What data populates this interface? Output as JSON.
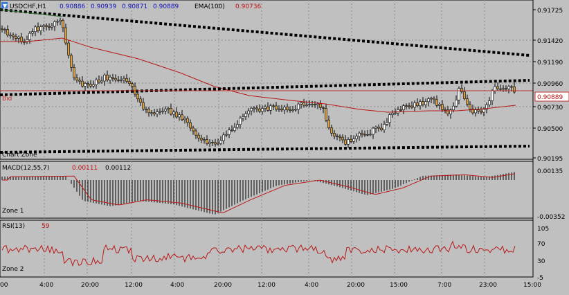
{
  "header": {
    "symbol": "USDCHF,H1",
    "open": "0.90886",
    "high": "0.90939",
    "low": "0.90871",
    "close": "0.90889",
    "ema_label": "EMA(100)",
    "ema_value": "0.90736"
  },
  "price_axis": {
    "ticks": [
      "0.91725",
      "0.91420",
      "0.91190",
      "0.90960",
      "0.90730",
      "0.90500",
      "0.90195"
    ],
    "current_price": "0.90889",
    "bid_label": "Bid",
    "zone_label": "Chart Zone"
  },
  "macd": {
    "label": "MACD(12,55,7)",
    "value1": "0.00111",
    "value2": "0.00112",
    "ticks": [
      "0.00135",
      "-0.00352"
    ],
    "zone_label": "Zone 1"
  },
  "rsi": {
    "label": "RSI(13)",
    "value": "59",
    "ticks": [
      "105",
      "70",
      "30",
      "-5"
    ],
    "zone_label": "Zone 2"
  },
  "time_axis": {
    "ticks": [
      "00",
      "4:00",
      "20:00",
      "12:00",
      "4:00",
      "20:00",
      "12:00",
      "4:00",
      "20:00",
      "15:00",
      "7:00",
      "23:00",
      "15:00"
    ]
  },
  "colors": {
    "background": "#c0c0c0",
    "bull_candle": "#ffffff",
    "bear_candle": "#d8a048",
    "ema_line": "#b81818",
    "trendline": "#000000",
    "header_blue": "#1010c0",
    "header_red": "#c01010"
  }
}
